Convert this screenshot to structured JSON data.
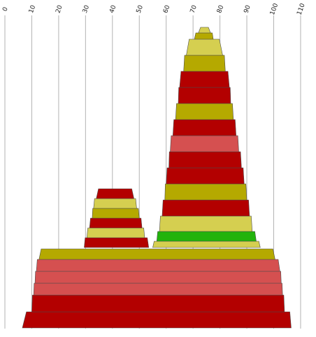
{
  "chart_data": {
    "type": "stacked-funnel",
    "title": "",
    "xlabel": "",
    "ylabel": "",
    "xlim": [
      0,
      110
    ],
    "x_ticks": [
      "0",
      "10",
      "20",
      "30",
      "40",
      "50",
      "60",
      "70",
      "80",
      "90",
      "100",
      "110"
    ],
    "grid": true,
    "legend": "none",
    "palette": {
      "dark_red": "#b30000",
      "light_red": "#d55050",
      "olive": "#b5a900",
      "khaki": "#d5cf50",
      "green": "#22b30c",
      "outline": "#4d4d4d"
    },
    "stacks": [
      {
        "name": "",
        "levels": [
          {
            "left": 8.0,
            "right": 106.0,
            "bottom_left": 6.5,
            "bottom_right": 106.5,
            "color": "dark_red"
          },
          {
            "left": 10.0,
            "right": 104.0,
            "color": "dark_red"
          },
          {
            "left": 10.7,
            "right": 103.3,
            "color": "light_red"
          },
          {
            "left": 11.2,
            "right": 102.8,
            "color": "light_red"
          },
          {
            "left": 11.7,
            "right": 102.3,
            "color": "light_red"
          },
          {
            "left": 12.7,
            "right": 100.5,
            "color": "olive"
          }
        ]
      },
      {
        "name": "",
        "levels": [
          {
            "left": 29.5,
            "right": 53.5,
            "color": "dark_red"
          },
          {
            "left": 30.5,
            "right": 52.0,
            "color": "khaki"
          },
          {
            "left": 31.5,
            "right": 51.0,
            "color": "dark_red"
          },
          {
            "left": 32.5,
            "right": 50.0,
            "color": "olive"
          },
          {
            "left": 33.0,
            "right": 49.0,
            "color": "khaki"
          },
          {
            "left": 34.0,
            "right": 48.0,
            "color": "dark_red"
          }
        ]
      },
      {
        "name": "",
        "levels": [
          {
            "left": 55.0,
            "right": 95.0,
            "color": "khaki"
          },
          {
            "left": 56.5,
            "right": 93.5,
            "color": "green"
          },
          {
            "left": 57.5,
            "right": 92.0,
            "color": "khaki"
          },
          {
            "left": 58.5,
            "right": 91.0,
            "color": "dark_red"
          },
          {
            "left": 59.5,
            "right": 90.0,
            "color": "olive"
          },
          {
            "left": 60.0,
            "right": 89.0,
            "color": "dark_red"
          },
          {
            "left": 61.0,
            "right": 88.0,
            "color": "dark_red"
          },
          {
            "left": 61.5,
            "right": 87.0,
            "color": "light_red"
          },
          {
            "left": 62.5,
            "right": 86.0,
            "color": "dark_red"
          },
          {
            "left": 63.5,
            "right": 85.0,
            "color": "olive"
          },
          {
            "left": 64.5,
            "right": 84.0,
            "color": "dark_red"
          },
          {
            "left": 65.0,
            "right": 83.5,
            "color": "dark_red"
          },
          {
            "left": 66.5,
            "right": 82.0,
            "color": "olive"
          },
          {
            "left": 67.5,
            "right": 81.0,
            "color": "khaki"
          },
          {
            "left": 70.5,
            "right": 77.5,
            "color": "olive"
          },
          {
            "left": 72.0,
            "right": 76.5,
            "color": "khaki"
          }
        ]
      }
    ]
  }
}
